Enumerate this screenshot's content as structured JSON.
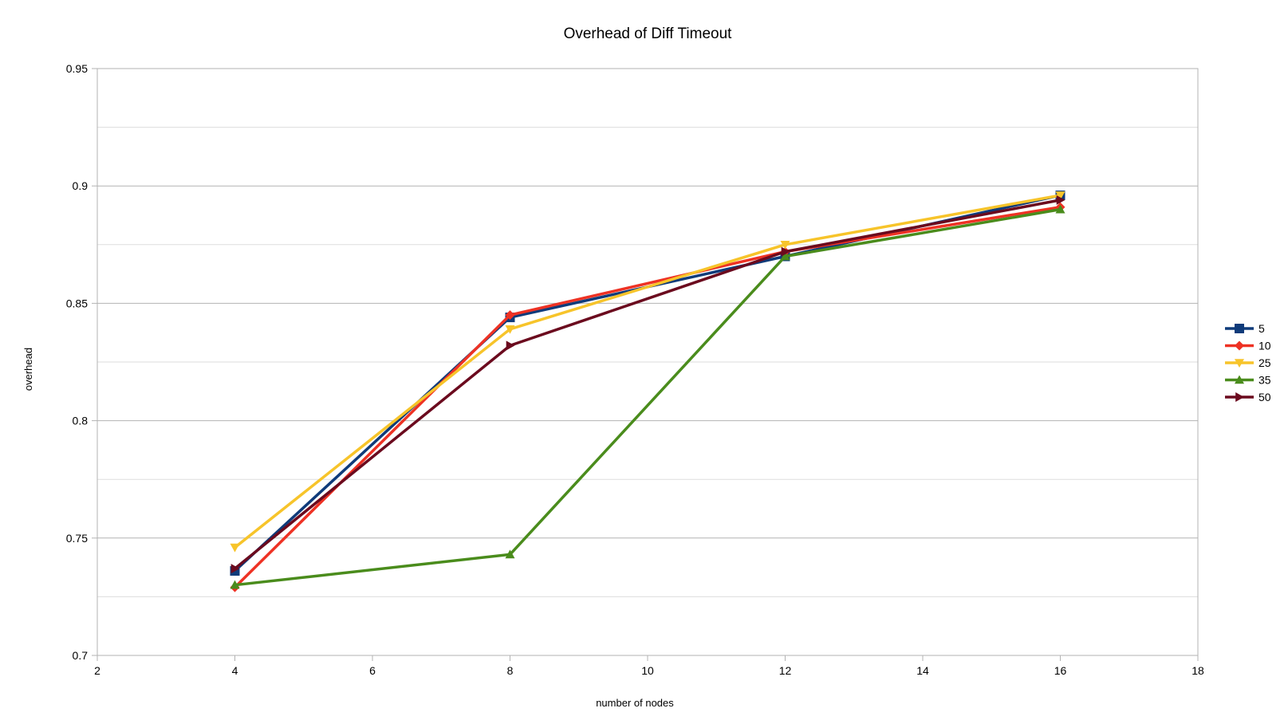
{
  "chart_data": {
    "type": "line",
    "title": "Overhead of Diff Timeout",
    "xlabel": "number of nodes",
    "ylabel": "overhead",
    "xlim": [
      2,
      18
    ],
    "ylim": [
      0.7,
      0.95
    ],
    "x_ticks": [
      "2",
      "4",
      "6",
      "8",
      "10",
      "12",
      "14",
      "16",
      "18"
    ],
    "y_ticks": [
      "0.7",
      "0.75",
      "0.8",
      "0.85",
      "0.9",
      "0.95"
    ],
    "major_grid": [
      0.75,
      0.8,
      0.85,
      0.9,
      0.95
    ],
    "minor_grid": [
      0.725,
      0.775,
      0.825,
      0.875,
      0.925
    ],
    "legend_position": "right",
    "x": [
      4,
      8,
      12,
      16
    ],
    "series": [
      {
        "name": "5",
        "values": [
          0.736,
          0.844,
          0.87,
          0.896
        ],
        "color": "#0f3b7a",
        "marker": "square"
      },
      {
        "name": "10",
        "values": [
          0.729,
          0.845,
          0.872,
          0.891
        ],
        "color": "#ee3224",
        "marker": "diamond"
      },
      {
        "name": "25",
        "values": [
          0.746,
          0.839,
          0.875,
          0.896
        ],
        "color": "#f7c42a",
        "marker": "triangle-down"
      },
      {
        "name": "35",
        "values": [
          0.73,
          0.743,
          0.87,
          0.89
        ],
        "color": "#4a8c1c",
        "marker": "triangle-up"
      },
      {
        "name": "50",
        "values": [
          0.737,
          0.832,
          0.872,
          0.894
        ],
        "color": "#6b0a1e",
        "marker": "triangle-right"
      }
    ]
  }
}
